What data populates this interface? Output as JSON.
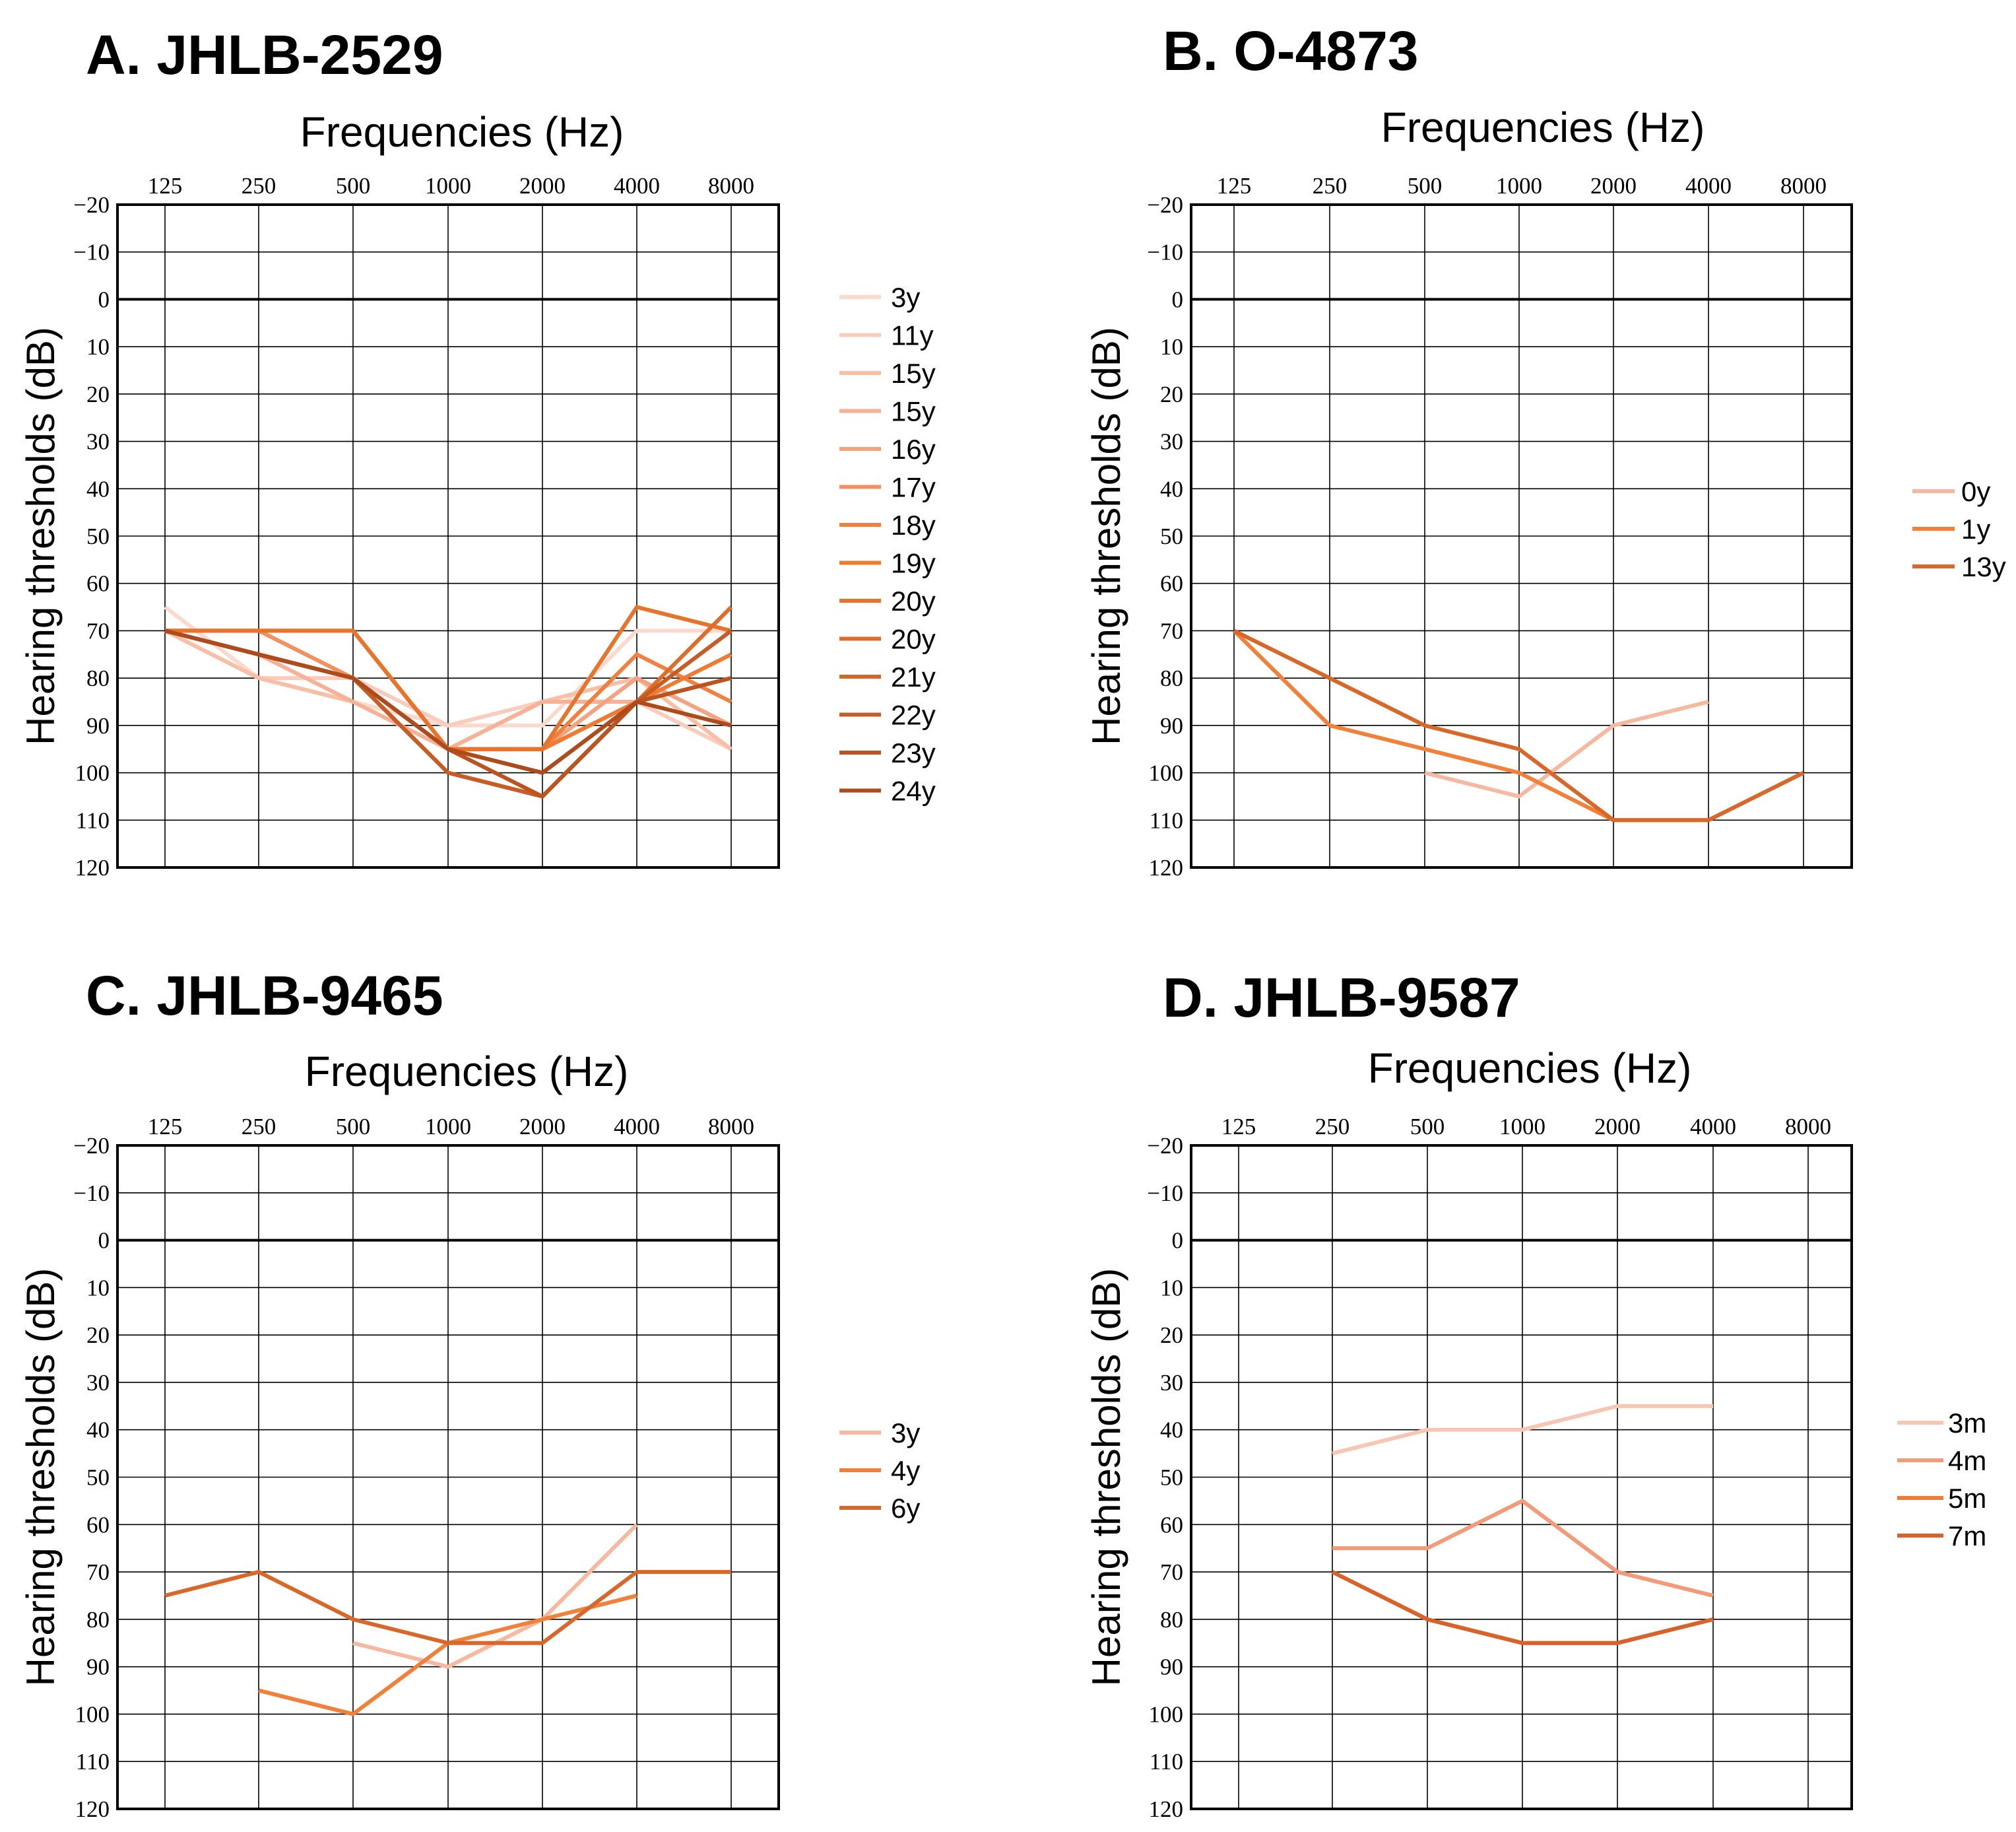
{
  "chart_data": [
    {
      "type": "line",
      "title": "A. JHLB-2529",
      "xlabel": "Frequencies (Hz)",
      "ylabel": "Hearing thresholds (dB)",
      "categories": [
        "125",
        "250",
        "500",
        "1000",
        "2000",
        "4000",
        "8000"
      ],
      "yticks": [
        "−20",
        "−10",
        "0",
        "10",
        "20",
        "30",
        "40",
        "50",
        "60",
        "70",
        "80",
        "90",
        "100",
        "110",
        "120"
      ],
      "ylim": [
        -20,
        120
      ],
      "y_inverted": true,
      "legend_position": "right",
      "series": [
        {
          "name": "3y",
          "color": "#fbd9cc",
          "values": [
            65,
            80,
            85,
            90,
            90,
            70,
            70
          ]
        },
        {
          "name": "11y",
          "color": "#f9ccbb",
          "values": [
            70,
            80,
            80,
            90,
            85,
            85,
            95
          ]
        },
        {
          "name": "15y",
          "color": "#f8bfa7",
          "values": [
            70,
            80,
            85,
            95,
            85,
            80,
            95
          ]
        },
        {
          "name": "15y",
          "color": "#f7b196",
          "values": [
            70,
            75,
            85,
            95,
            85,
            85,
            90
          ]
        },
        {
          "name": "16y",
          "color": "#f5a27f",
          "values": [
            70,
            75,
            80,
            95,
            95,
            80,
            90
          ]
        },
        {
          "name": "17y",
          "color": "#f3905f",
          "values": [
            70,
            70,
            80,
            95,
            95,
            85,
            80
          ]
        },
        {
          "name": "18y",
          "color": "#f28040",
          "values": [
            70,
            70,
            70,
            95,
            95,
            75,
            85
          ]
        },
        {
          "name": "19y",
          "color": "#f07a32",
          "values": [
            70,
            70,
            70,
            95,
            95,
            85,
            75
          ]
        },
        {
          "name": "20y",
          "color": "#e8742c",
          "values": [
            70,
            70,
            70,
            95,
            95,
            65,
            70
          ]
        },
        {
          "name": "20y",
          "color": "#e06c2a",
          "values": [
            70,
            75,
            80,
            95,
            100,
            85,
            65
          ]
        },
        {
          "name": "21y",
          "color": "#d46428",
          "values": [
            70,
            75,
            80,
            100,
            105,
            85,
            80
          ]
        },
        {
          "name": "22y",
          "color": "#c85c25",
          "values": [
            70,
            75,
            80,
            100,
            105,
            85,
            70
          ]
        },
        {
          "name": "23y",
          "color": "#bb5420",
          "values": [
            70,
            75,
            80,
            95,
            105,
            85,
            80
          ]
        },
        {
          "name": "24y",
          "color": "#ad4b1c",
          "values": [
            70,
            75,
            80,
            95,
            100,
            85,
            90
          ]
        }
      ]
    },
    {
      "type": "line",
      "title": "B. O-4873",
      "xlabel": "Frequencies (Hz)",
      "ylabel": "Hearing thresholds (dB)",
      "categories": [
        "125",
        "250",
        "500",
        "1000",
        "2000",
        "4000",
        "8000"
      ],
      "yticks": [
        "−20",
        "−10",
        "0",
        "10",
        "20",
        "30",
        "40",
        "50",
        "60",
        "70",
        "80",
        "90",
        "100",
        "110",
        "120"
      ],
      "ylim": [
        -20,
        120
      ],
      "y_inverted": true,
      "legend_position": "right",
      "series": [
        {
          "name": "0y",
          "color": "#f7b8a0",
          "values": [
            null,
            null,
            100,
            105,
            90,
            85,
            null
          ]
        },
        {
          "name": "1y",
          "color": "#f28039",
          "values": [
            70,
            90,
            95,
            100,
            110,
            110,
            100
          ]
        },
        {
          "name": "13y",
          "color": "#d9672a",
          "values": [
            70,
            80,
            90,
            95,
            110,
            110,
            100
          ]
        }
      ]
    },
    {
      "type": "line",
      "title": "C. JHLB-9465",
      "xlabel": "Frequencies (Hz)",
      "ylabel": "Hearing thresholds (dB)",
      "categories": [
        "125",
        "250",
        "500",
        "1000",
        "2000",
        "4000",
        "8000"
      ],
      "yticks": [
        "−20",
        "−10",
        "0",
        "10",
        "20",
        "30",
        "40",
        "50",
        "60",
        "70",
        "80",
        "90",
        "100",
        "110",
        "120"
      ],
      "ylim": [
        -20,
        120
      ],
      "y_inverted": true,
      "legend_position": "right",
      "series": [
        {
          "name": "3y",
          "color": "#f7b8a0",
          "values": [
            null,
            null,
            85,
            90,
            80,
            60,
            null
          ]
        },
        {
          "name": "4y",
          "color": "#f28039",
          "values": [
            null,
            95,
            100,
            85,
            80,
            75,
            null
          ]
        },
        {
          "name": "6y",
          "color": "#d9672a",
          "values": [
            75,
            70,
            80,
            85,
            85,
            70,
            70
          ]
        }
      ]
    },
    {
      "type": "line",
      "title": "D. JHLB-9587",
      "xlabel": "Frequencies (Hz)",
      "ylabel": "Hearing thresholds (dB)",
      "categories": [
        "125",
        "250",
        "500",
        "1000",
        "2000",
        "4000",
        "8000"
      ],
      "yticks": [
        "−20",
        "−10",
        "0",
        "10",
        "20",
        "30",
        "40",
        "50",
        "60",
        "70",
        "80",
        "90",
        "100",
        "110",
        "120"
      ],
      "ylim": [
        -20,
        120
      ],
      "y_inverted": true,
      "legend_position": "right",
      "series": [
        {
          "name": "3m",
          "color": "#f9c6b3",
          "values": [
            null,
            45,
            40,
            40,
            35,
            35,
            null
          ]
        },
        {
          "name": "4m",
          "color": "#f49a78",
          "values": [
            null,
            65,
            65,
            55,
            70,
            75,
            null
          ]
        },
        {
          "name": "5m",
          "color": "#ee7c3a",
          "values": [
            null,
            70,
            80,
            85,
            85,
            80,
            null
          ]
        },
        {
          "name": "7m",
          "color": "#d9622a",
          "values": [
            null,
            70,
            80,
            85,
            85,
            80,
            null
          ]
        }
      ]
    }
  ]
}
